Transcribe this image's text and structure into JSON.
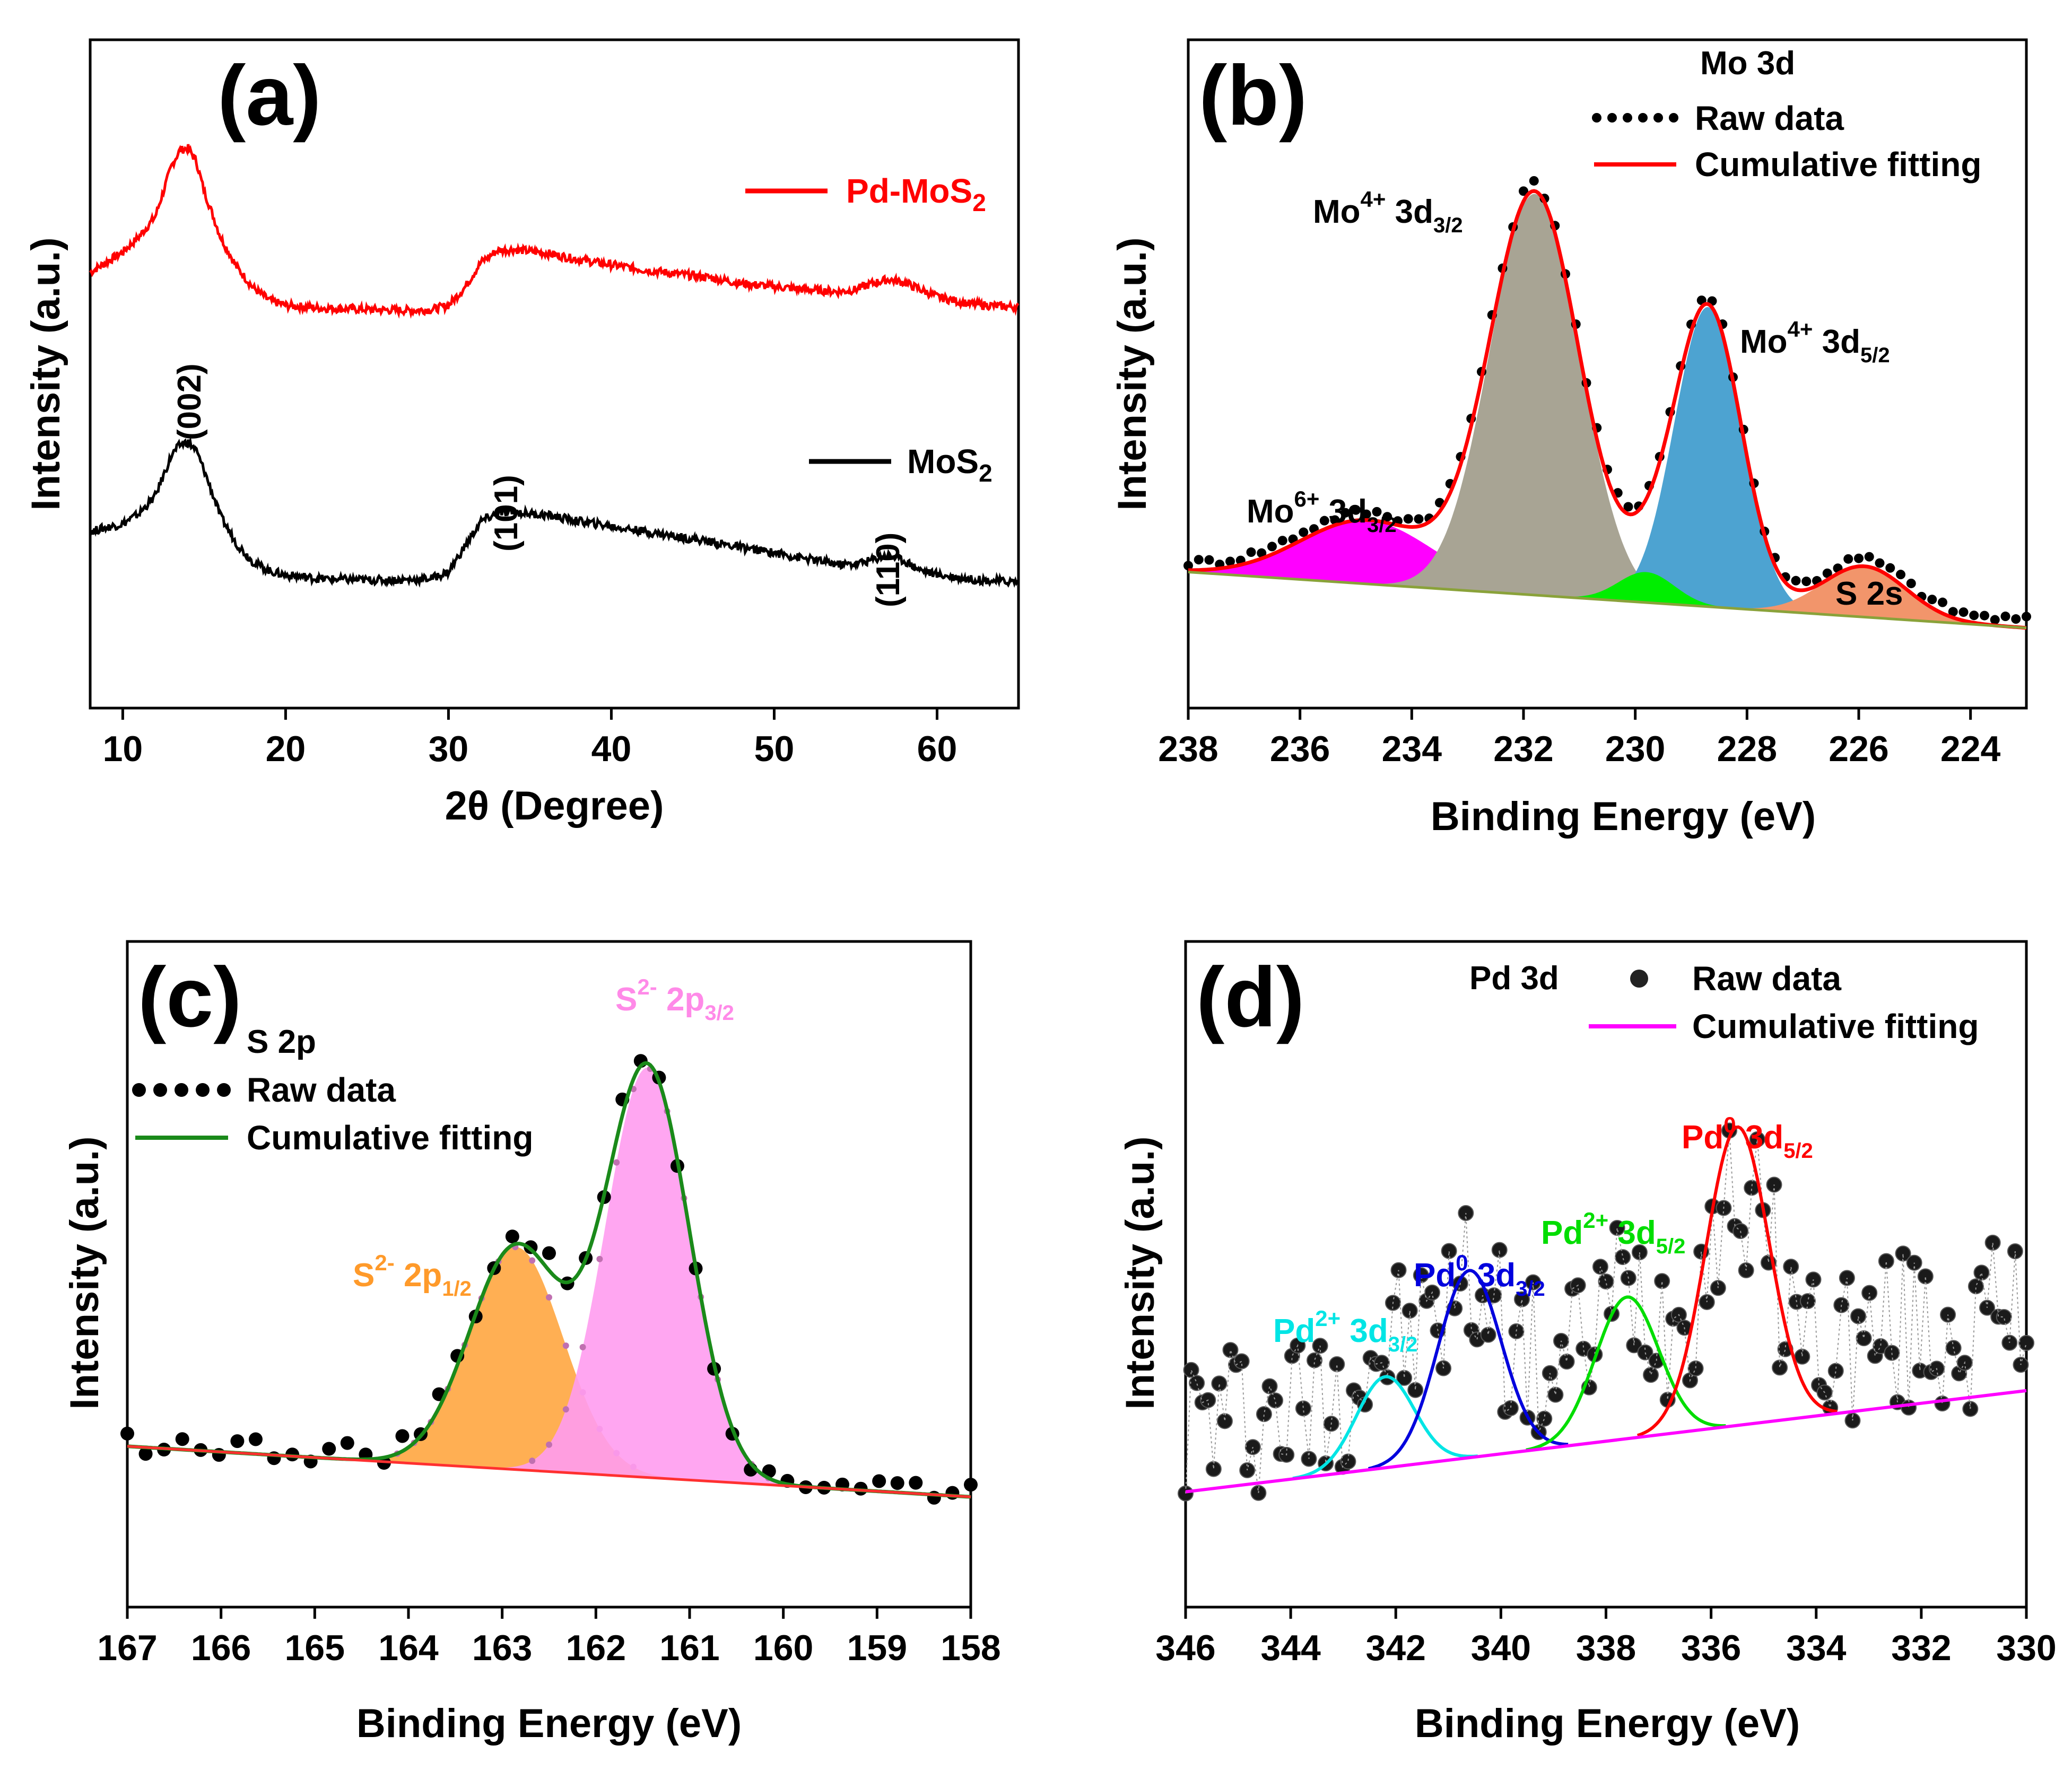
{
  "chart_data": [
    {
      "id": "a",
      "type": "line",
      "panel_label": "(a)",
      "xlabel": "2θ (Degree)",
      "ylabel": "Intensity (a.u.)",
      "xlim": [
        8,
        65
      ],
      "ylim": [
        0,
        100
      ],
      "xticks": [
        "10",
        "20",
        "30",
        "40",
        "50",
        "60"
      ],
      "xtick_values": [
        10,
        20,
        30,
        40,
        50,
        60
      ],
      "series": [
        {
          "name": "Pd-MoS",
          "subscript": "2",
          "color": "#ff0000",
          "x": [
            8,
            10,
            11,
            12,
            12.5,
            13,
            13.5,
            14,
            14.5,
            15,
            16,
            17,
            18,
            19,
            20,
            22,
            24,
            26,
            28,
            29,
            30,
            31,
            32,
            33,
            34,
            36,
            38,
            40,
            42,
            44,
            46,
            48,
            50,
            52,
            54,
            55,
            56,
            57,
            58,
            59,
            60,
            62,
            64,
            65
          ],
          "y": [
            70,
            74,
            77,
            81,
            86,
            91,
            94,
            94.5,
            92,
            86,
            77,
            71,
            67,
            64.5,
            63.5,
            63,
            62.8,
            62.6,
            62.5,
            62.7,
            63.5,
            67,
            72,
            74.3,
            74.5,
            73.8,
            72.5,
            71.5,
            70.5,
            69.7,
            69,
            67.8,
            67.2,
            66.6,
            66.2,
            66.6,
            67.8,
            68.6,
            68,
            66.6,
            65.2,
            63.8,
            63.3,
            63.2
          ]
        },
        {
          "name": "MoS",
          "subscript": "2",
          "color": "#000000",
          "x": [
            8,
            10,
            11,
            12,
            12.5,
            13,
            13.5,
            14,
            14.5,
            15,
            16,
            17,
            18,
            19,
            20,
            22,
            24,
            26,
            28,
            29,
            30,
            31,
            32,
            33,
            34,
            36,
            38,
            40,
            42,
            44,
            46,
            48,
            50,
            52,
            54,
            55,
            56,
            57,
            58,
            59,
            60,
            62,
            64,
            65
          ],
          "y": [
            19,
            20.5,
            22.5,
            26,
            30,
            34,
            36,
            36.6,
            35,
            31,
            22,
            16.5,
            13,
            11.2,
            10.4,
            9.7,
            9.5,
            9.4,
            9.5,
            9.8,
            11,
            16,
            21,
            22.5,
            22.8,
            22.2,
            21,
            20,
            19,
            18,
            17,
            15.8,
            14.8,
            13.6,
            12.5,
            12.6,
            13.4,
            14.4,
            13.2,
            11.4,
            10.5,
            9.6,
            9.2,
            9.1
          ]
        }
      ],
      "annotations": [
        "(002)",
        "(101)",
        "(110)"
      ]
    },
    {
      "id": "b",
      "type": "line",
      "panel_label": "(b)",
      "title": "Mo 3d",
      "xlabel": "Binding Energy (eV)",
      "ylabel": "Intensity (a.u.)",
      "xlim": [
        238,
        223
      ],
      "ylim": [
        0,
        100
      ],
      "xticks": [
        "238",
        "236",
        "234",
        "232",
        "230",
        "228",
        "226",
        "224"
      ],
      "xtick_values": [
        238,
        236,
        234,
        232,
        230,
        228,
        226,
        224
      ],
      "legend": [
        "Raw data",
        "Cumulative fitting"
      ],
      "baseline": [
        238,
        11,
        223,
        0
      ],
      "peaks": [
        {
          "label": "Mo6+ 3d3/2",
          "center": 234.8,
          "height": 12.5,
          "width": 1.2,
          "color": "#ff00ff"
        },
        {
          "label": "Mo4+ 3d3/2",
          "center": 231.8,
          "height": 79,
          "width": 0.8,
          "color": "#a8a494"
        },
        {
          "label": "Mo4+ 3d5/2",
          "center": 228.7,
          "height": 59,
          "width": 0.6,
          "color": "#4da3d1"
        },
        {
          "label": "",
          "center": 229.8,
          "height": 6,
          "width": 0.5,
          "color": "#00ee00"
        },
        {
          "label": "S 2s",
          "center": 225.9,
          "height": 10,
          "width": 0.75,
          "color": "#f2956b"
        }
      ],
      "annotations": [
        "Mo",
        "4+",
        " 3d",
        "3/2",
        "5/2",
        "6+",
        "S 2s"
      ]
    },
    {
      "id": "c",
      "type": "line",
      "panel_label": "(c)",
      "title": "S 2p",
      "xlabel": "Binding Energy (eV)",
      "ylabel": "Intensity (a.u.)",
      "xlim": [
        167,
        158
      ],
      "ylim": [
        0,
        100
      ],
      "xticks": [
        "167",
        "166",
        "165",
        "164",
        "163",
        "162",
        "161",
        "160",
        "159",
        "158"
      ],
      "xtick_values": [
        167,
        166,
        165,
        164,
        163,
        162,
        161,
        160,
        159,
        158
      ],
      "legend": [
        "Raw data",
        "Cumulative fitting"
      ],
      "baseline": [
        167,
        16,
        158,
        6
      ],
      "peaks": [
        {
          "label": "S2- 2p1/2",
          "center": 162.85,
          "height": 44,
          "width": 0.5,
          "color": "#ffa640"
        },
        {
          "label": "S2- 2p3/2",
          "center": 161.45,
          "height": 81,
          "width": 0.45,
          "color": "#ff9cf0"
        }
      ],
      "annotations": [
        "S",
        "2-",
        " 2p",
        "1/2",
        "3/2"
      ]
    },
    {
      "id": "d",
      "type": "line",
      "panel_label": "(d)",
      "title": "Pd 3d",
      "xlabel": "Binding Energy (eV)",
      "ylabel": "Intensity (a.u.)",
      "xlim": [
        346,
        330
      ],
      "ylim": [
        0,
        100
      ],
      "xticks": [
        "346",
        "344",
        "342",
        "340",
        "338",
        "336",
        "334",
        "332",
        "330"
      ],
      "xtick_values": [
        346,
        344,
        342,
        340,
        338,
        336,
        334,
        332,
        330
      ],
      "legend": [
        "Raw data",
        "Cumulative fitting"
      ],
      "baseline": [
        346,
        7,
        330,
        27
      ],
      "peaks": [
        {
          "label": "Pd2+ 3d3/2",
          "center": 342.2,
          "height": 18,
          "width": 0.55,
          "color": "#00e5e5"
        },
        {
          "label": "Pd0 3d3/2",
          "center": 340.6,
          "height": 37,
          "width": 0.6,
          "color": "#0000dd"
        },
        {
          "label": "Pd2+ 3d5/2",
          "center": 337.6,
          "height": 28,
          "width": 0.6,
          "color": "#00dd00"
        },
        {
          "label": "Pd0 3d5/2",
          "center": 335.5,
          "height": 59,
          "width": 0.6,
          "color": "#ff0000"
        }
      ],
      "annotations": [
        "Pd",
        "2+",
        "0",
        " 3d",
        "3/2",
        "5/2"
      ]
    }
  ]
}
